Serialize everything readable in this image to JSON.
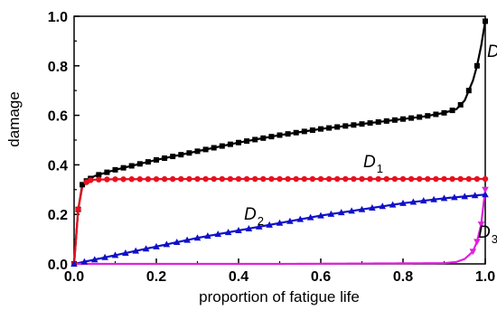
{
  "chart_data": {
    "type": "line",
    "title": "",
    "xlabel": "proportion of  fatigue life",
    "ylabel": "damage",
    "xlim": [
      0.0,
      1.0
    ],
    "ylim": [
      0.0,
      1.0
    ],
    "x_ticks": [
      "0.0",
      "0.2",
      "0.4",
      "0.6",
      "0.8",
      "1.0"
    ],
    "y_ticks": [
      "0.0",
      "0.2",
      "0.4",
      "0.6",
      "0.8",
      "1.0"
    ],
    "grid": false,
    "legend": "none",
    "series": [
      {
        "name": "D",
        "label_main": "D",
        "label_sub": "",
        "color": "#000000",
        "marker": "square",
        "points": [
          [
            0.0,
            0.0
          ],
          [
            0.01,
            0.22
          ],
          [
            0.02,
            0.32
          ],
          [
            0.03,
            0.335
          ],
          [
            0.04,
            0.345
          ],
          [
            0.05,
            0.355
          ],
          [
            0.1,
            0.38
          ],
          [
            0.2,
            0.42
          ],
          [
            0.3,
            0.455
          ],
          [
            0.4,
            0.49
          ],
          [
            0.5,
            0.52
          ],
          [
            0.6,
            0.545
          ],
          [
            0.7,
            0.565
          ],
          [
            0.8,
            0.585
          ],
          [
            0.85,
            0.595
          ],
          [
            0.9,
            0.61
          ],
          [
            0.93,
            0.625
          ],
          [
            0.95,
            0.66
          ],
          [
            0.97,
            0.74
          ],
          [
            0.98,
            0.8
          ],
          [
            0.99,
            0.88
          ],
          [
            1.0,
            0.98
          ]
        ]
      },
      {
        "name": "D1",
        "label_main": "D",
        "label_sub": "1",
        "color": "#e8101e",
        "marker": "circle",
        "points": [
          [
            0.0,
            0.0
          ],
          [
            0.01,
            0.22
          ],
          [
            0.02,
            0.31
          ],
          [
            0.03,
            0.33
          ],
          [
            0.04,
            0.338
          ],
          [
            0.05,
            0.34
          ],
          [
            0.1,
            0.342
          ],
          [
            0.3,
            0.343
          ],
          [
            0.5,
            0.343
          ],
          [
            0.7,
            0.343
          ],
          [
            0.9,
            0.343
          ],
          [
            1.0,
            0.343
          ]
        ]
      },
      {
        "name": "D2",
        "label_main": "D",
        "label_sub": "2",
        "color": "#1010c8",
        "marker": "triangle-up",
        "points": [
          [
            0.0,
            0.0
          ],
          [
            0.1,
            0.035
          ],
          [
            0.2,
            0.07
          ],
          [
            0.3,
            0.105
          ],
          [
            0.4,
            0.135
          ],
          [
            0.5,
            0.165
          ],
          [
            0.6,
            0.195
          ],
          [
            0.7,
            0.22
          ],
          [
            0.8,
            0.245
          ],
          [
            0.9,
            0.265
          ],
          [
            1.0,
            0.28
          ]
        ]
      },
      {
        "name": "D3",
        "label_main": "D",
        "label_sub": "3",
        "color": "#e020e0",
        "marker": "triangle-down",
        "points": [
          [
            0.0,
            0.0
          ],
          [
            0.5,
            0.0
          ],
          [
            0.9,
            0.003
          ],
          [
            0.93,
            0.008
          ],
          [
            0.95,
            0.02
          ],
          [
            0.97,
            0.05
          ],
          [
            0.98,
            0.09
          ],
          [
            0.99,
            0.16
          ],
          [
            1.0,
            0.3
          ]
        ]
      }
    ]
  }
}
